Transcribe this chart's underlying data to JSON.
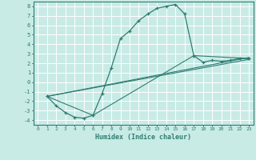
{
  "xlabel": "Humidex (Indice chaleur)",
  "ylabel": "",
  "background_color": "#c8ebe6",
  "grid_color": "#ffffff",
  "line_color": "#2e7d72",
  "marker": "+",
  "xlim": [
    -0.5,
    23.5
  ],
  "ylim": [
    -4.5,
    8.5
  ],
  "xticks": [
    0,
    1,
    2,
    3,
    4,
    5,
    6,
    7,
    8,
    9,
    10,
    11,
    12,
    13,
    14,
    15,
    16,
    17,
    18,
    19,
    20,
    21,
    22,
    23
  ],
  "yticks": [
    -4,
    -3,
    -2,
    -1,
    0,
    1,
    2,
    3,
    4,
    5,
    6,
    7,
    8
  ],
  "main_x": [
    1,
    2,
    3,
    4,
    5,
    6,
    7,
    8,
    9,
    10,
    11,
    12,
    13,
    14,
    15,
    16,
    17,
    18,
    19,
    20,
    21,
    22,
    23
  ],
  "main_y": [
    -1.5,
    -2.5,
    -3.2,
    -3.7,
    -3.8,
    -3.5,
    -1.2,
    1.5,
    4.6,
    5.4,
    6.5,
    7.2,
    7.8,
    8.0,
    8.2,
    7.2,
    2.8,
    2.1,
    2.3,
    2.2,
    2.3,
    2.5,
    2.5
  ],
  "line1_x": [
    1,
    23
  ],
  "line1_y": [
    -1.5,
    2.4
  ],
  "line2_x": [
    1,
    23
  ],
  "line2_y": [
    -1.5,
    2.6
  ],
  "line3_x": [
    1,
    6,
    17,
    23
  ],
  "line3_y": [
    -1.5,
    -3.5,
    2.8,
    2.5
  ]
}
